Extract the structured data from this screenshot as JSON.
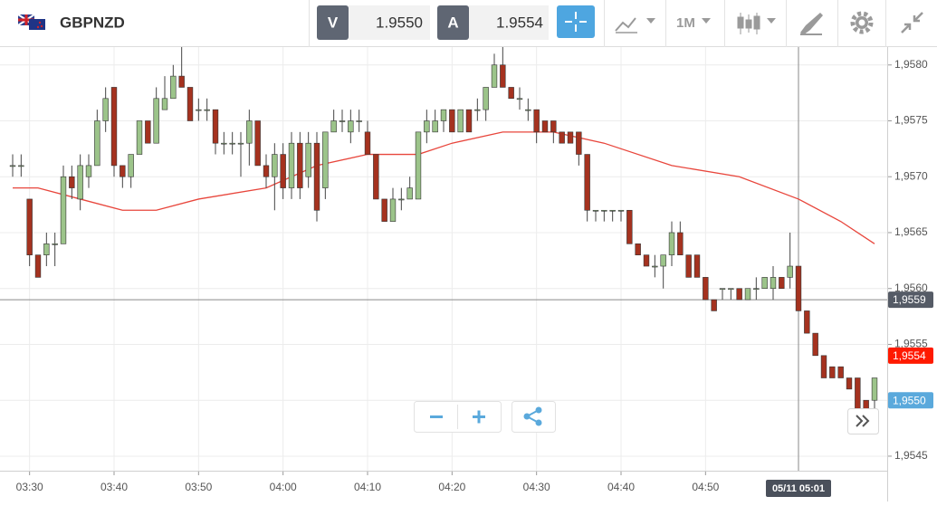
{
  "toolbar": {
    "symbol": "GBPNZD",
    "bid_label": "V",
    "bid": "1.9550",
    "ask_label": "A",
    "ask": "1.9554",
    "timeframe": "1M"
  },
  "chart_data": {
    "type": "candlestick",
    "up_color": "#9cc48a",
    "down_color": "#a5321f",
    "ohlc": [
      [
        1.9571,
        1.9572,
        1.957,
        1.9571
      ],
      [
        1.9571,
        1.9572,
        1.957,
        1.9571
      ],
      [
        1.9568,
        1.9568,
        1.9562,
        1.9563
      ],
      [
        1.9563,
        1.9563,
        1.9561,
        1.9561
      ],
      [
        1.9563,
        1.9565,
        1.9562,
        1.9564
      ],
      [
        1.9564,
        1.9565,
        1.9562,
        1.9564
      ],
      [
        1.9564,
        1.9571,
        1.9564,
        1.957
      ],
      [
        1.957,
        1.9571,
        1.9568,
        1.9569
      ],
      [
        1.9568,
        1.9572,
        1.9567,
        1.9571
      ],
      [
        1.957,
        1.9572,
        1.9569,
        1.9571
      ],
      [
        1.9571,
        1.9576,
        1.9571,
        1.9575
      ],
      [
        1.9575,
        1.9578,
        1.9574,
        1.9577
      ],
      [
        1.9578,
        1.9578,
        1.957,
        1.9571
      ],
      [
        1.9571,
        1.9571,
        1.9569,
        1.957
      ],
      [
        1.957,
        1.9572,
        1.9569,
        1.9572
      ],
      [
        1.9572,
        1.9575,
        1.9572,
        1.9575
      ],
      [
        1.9575,
        1.9575,
        1.9573,
        1.9573
      ],
      [
        1.9573,
        1.9578,
        1.9573,
        1.9577
      ],
      [
        1.9576,
        1.9579,
        1.9576,
        1.9577
      ],
      [
        1.9577,
        1.958,
        1.9577,
        1.9579
      ],
      [
        1.9579,
        1.9582,
        1.9578,
        1.9578
      ],
      [
        1.9578,
        1.9578,
        1.9575,
        1.9575
      ],
      [
        1.9576,
        1.9577,
        1.9575,
        1.9576
      ],
      [
        1.9576,
        1.9577,
        1.9575,
        1.9576
      ],
      [
        1.9576,
        1.9576,
        1.9572,
        1.9573
      ],
      [
        1.9573,
        1.9574,
        1.9572,
        1.9573
      ],
      [
        1.9573,
        1.9574,
        1.9572,
        1.9573
      ],
      [
        1.9573,
        1.9574,
        1.957,
        1.9573
      ],
      [
        1.9573,
        1.9576,
        1.9571,
        1.9575
      ],
      [
        1.9575,
        1.9575,
        1.9571,
        1.9571
      ],
      [
        1.9571,
        1.9572,
        1.9569,
        1.957
      ],
      [
        1.957,
        1.9573,
        1.9567,
        1.9572
      ],
      [
        1.9572,
        1.9573,
        1.9568,
        1.9569
      ],
      [
        1.9569,
        1.9574,
        1.9568,
        1.9573
      ],
      [
        1.9573,
        1.9574,
        1.9568,
        1.9569
      ],
      [
        1.957,
        1.9574,
        1.9569,
        1.9573
      ],
      [
        1.9573,
        1.9574,
        1.9566,
        1.9567
      ],
      [
        1.9569,
        1.9574,
        1.9568,
        1.9574
      ],
      [
        1.9574,
        1.9576,
        1.9574,
        1.9575
      ],
      [
        1.9575,
        1.9576,
        1.9574,
        1.9575
      ],
      [
        1.9574,
        1.9576,
        1.9573,
        1.9575
      ],
      [
        1.9575,
        1.9576,
        1.9574,
        1.9575
      ],
      [
        1.9574,
        1.9575,
        1.9572,
        1.9572
      ],
      [
        1.9572,
        1.9572,
        1.9568,
        1.9568
      ],
      [
        1.9568,
        1.9568,
        1.9566,
        1.9566
      ],
      [
        1.9566,
        1.9569,
        1.9566,
        1.9568
      ],
      [
        1.9568,
        1.9569,
        1.9567,
        1.9568
      ],
      [
        1.9568,
        1.957,
        1.9568,
        1.9569
      ],
      [
        1.9568,
        1.9574,
        1.9568,
        1.9574
      ],
      [
        1.9574,
        1.9576,
        1.9573,
        1.9575
      ],
      [
        1.9574,
        1.9576,
        1.9574,
        1.9575
      ],
      [
        1.9575,
        1.9576,
        1.9574,
        1.9576
      ],
      [
        1.9576,
        1.9576,
        1.9574,
        1.9574
      ],
      [
        1.9574,
        1.9576,
        1.9574,
        1.9576
      ],
      [
        1.9576,
        1.9576,
        1.9574,
        1.9574
      ],
      [
        1.9576,
        1.9577,
        1.9575,
        1.9576
      ],
      [
        1.9576,
        1.9578,
        1.9575,
        1.9578
      ],
      [
        1.9578,
        1.9581,
        1.9578,
        1.958
      ],
      [
        1.958,
        1.9582,
        1.9578,
        1.9578
      ],
      [
        1.9578,
        1.9578,
        1.9577,
        1.9577
      ],
      [
        1.9577,
        1.9578,
        1.9576,
        1.9577
      ],
      [
        1.9576,
        1.9577,
        1.9575,
        1.9576
      ],
      [
        1.9576,
        1.9576,
        1.9573,
        1.9574
      ],
      [
        1.9575,
        1.9575,
        1.9574,
        1.9574
      ],
      [
        1.9575,
        1.9575,
        1.9573,
        1.9574
      ],
      [
        1.9574,
        1.9574,
        1.9573,
        1.9573
      ],
      [
        1.9574,
        1.9574,
        1.9573,
        1.9573
      ],
      [
        1.9574,
        1.9574,
        1.9571,
        1.9572
      ],
      [
        1.9572,
        1.9572,
        1.9566,
        1.9567
      ],
      [
        1.9567,
        1.9567,
        1.9566,
        1.9567
      ],
      [
        1.9567,
        1.9567,
        1.9566,
        1.9567
      ],
      [
        1.9567,
        1.9567,
        1.9566,
        1.9567
      ],
      [
        1.9567,
        1.9567,
        1.9566,
        1.9567
      ],
      [
        1.9567,
        1.9567,
        1.9564,
        1.9564
      ],
      [
        1.9564,
        1.9564,
        1.9563,
        1.9563
      ],
      [
        1.9563,
        1.9563,
        1.9562,
        1.9562
      ],
      [
        1.9562,
        1.9563,
        1.9561,
        1.9562
      ],
      [
        1.9562,
        1.9563,
        1.956,
        1.9563
      ],
      [
        1.9563,
        1.9566,
        1.9562,
        1.9565
      ],
      [
        1.9565,
        1.9566,
        1.9563,
        1.9563
      ],
      [
        1.9563,
        1.9563,
        1.9561,
        1.9561
      ],
      [
        1.9563,
        1.9563,
        1.9561,
        1.9561
      ],
      [
        1.9561,
        1.9561,
        1.9559,
        1.9559
      ],
      [
        1.9559,
        1.9559,
        1.9558,
        1.9558
      ],
      [
        1.956,
        1.956,
        1.9559,
        1.956
      ],
      [
        1.956,
        1.956,
        1.9559,
        1.956
      ],
      [
        1.956,
        1.956,
        1.9559,
        1.9559
      ],
      [
        1.9559,
        1.956,
        1.9559,
        1.956
      ],
      [
        1.956,
        1.9561,
        1.9559,
        1.956
      ],
      [
        1.956,
        1.9561,
        1.956,
        1.9561
      ],
      [
        1.956,
        1.9562,
        1.9559,
        1.9561
      ],
      [
        1.9561,
        1.9561,
        1.956,
        1.956
      ],
      [
        1.9561,
        1.9565,
        1.956,
        1.9562
      ],
      [
        1.9562,
        1.9562,
        1.9558,
        1.9558
      ],
      [
        1.9558,
        1.9558,
        1.9556,
        1.9556
      ],
      [
        1.9556,
        1.9556,
        1.9554,
        1.9554
      ],
      [
        1.9554,
        1.9554,
        1.9552,
        1.9552
      ],
      [
        1.9553,
        1.9553,
        1.9552,
        1.9552
      ],
      [
        1.9553,
        1.9553,
        1.9552,
        1.9552
      ],
      [
        1.9552,
        1.9552,
        1.9551,
        1.9551
      ],
      [
        1.9552,
        1.9552,
        1.9549,
        1.9549
      ],
      [
        1.955,
        1.955,
        1.9549,
        1.9549
      ],
      [
        1.955,
        1.9552,
        1.9549,
        1.9552
      ]
    ],
    "moving_average": {
      "color": "#e8463c",
      "x": [
        0,
        3,
        8,
        13,
        17,
        22,
        30,
        36,
        42,
        48,
        52,
        58,
        64,
        70,
        78,
        86,
        93,
        98,
        102
      ],
      "values": [
        1.9569,
        1.9569,
        1.9568,
        1.9567,
        1.9567,
        1.9568,
        1.9569,
        1.9571,
        1.9572,
        1.9572,
        1.9573,
        1.9574,
        1.9574,
        1.9573,
        1.9571,
        1.957,
        1.9568,
        1.9566,
        1.9564
      ]
    },
    "xlim": [
      -1.5,
      103.5
    ],
    "xticks": [
      {
        "value": 2,
        "label": "03:30"
      },
      {
        "value": 12,
        "label": "03:40"
      },
      {
        "value": 22,
        "label": "03:50"
      },
      {
        "value": 32,
        "label": "04:00"
      },
      {
        "value": 42,
        "label": "04:10"
      },
      {
        "value": 52,
        "label": "04:20"
      },
      {
        "value": 62,
        "label": "04:30"
      },
      {
        "value": 72,
        "label": "04:40"
      },
      {
        "value": 82,
        "label": "04:50"
      }
    ],
    "ylim": [
      1.95437,
      1.95816
    ],
    "yticks": [
      {
        "value": 1.9545,
        "label": "1,9545"
      },
      {
        "value": 1.955,
        "label": "1,9550"
      },
      {
        "value": 1.9555,
        "label": "1,9555"
      },
      {
        "value": 1.956,
        "label": "1,9560"
      },
      {
        "value": 1.9565,
        "label": "1,9565"
      },
      {
        "value": 1.957,
        "label": "1,9570"
      },
      {
        "value": 1.9575,
        "label": "1,9575"
      },
      {
        "value": 1.958,
        "label": "1,9580"
      }
    ],
    "grid": true,
    "price_markers": [
      {
        "value": 1.9554,
        "label": "1,9554",
        "color": "#ff1a00"
      },
      {
        "value": 1.955,
        "label": "1,9550",
        "color": "#5aa9dc"
      }
    ],
    "crosshair_x": {
      "value": 93,
      "label": "05/11 05:01"
    },
    "crosshair_y": {
      "value": 1.9559,
      "label": "1,9559"
    }
  }
}
